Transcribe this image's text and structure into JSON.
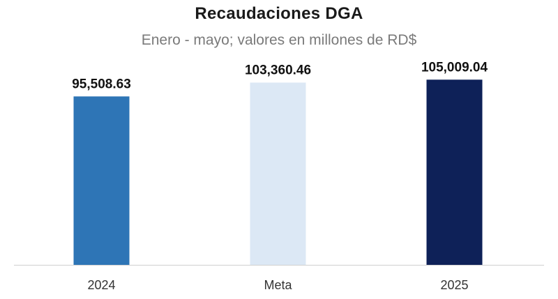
{
  "chart_data": {
    "type": "bar",
    "title": "Recaudaciones DGA",
    "subtitle": "Enero - mayo; valores en millones de RD$",
    "xlabel": "",
    "ylabel": "",
    "categories": [
      "2024",
      "Meta",
      "2025"
    ],
    "values": [
      95508.63,
      103360.46,
      105009.04
    ],
    "data_labels": [
      "95,508.63",
      "103,360.46",
      "105,009.04"
    ],
    "colors": [
      "#2e75b6",
      "#dce8f5",
      "#0e2158"
    ],
    "ylim": [
      0,
      107500
    ],
    "grid": false,
    "legend": "none"
  }
}
